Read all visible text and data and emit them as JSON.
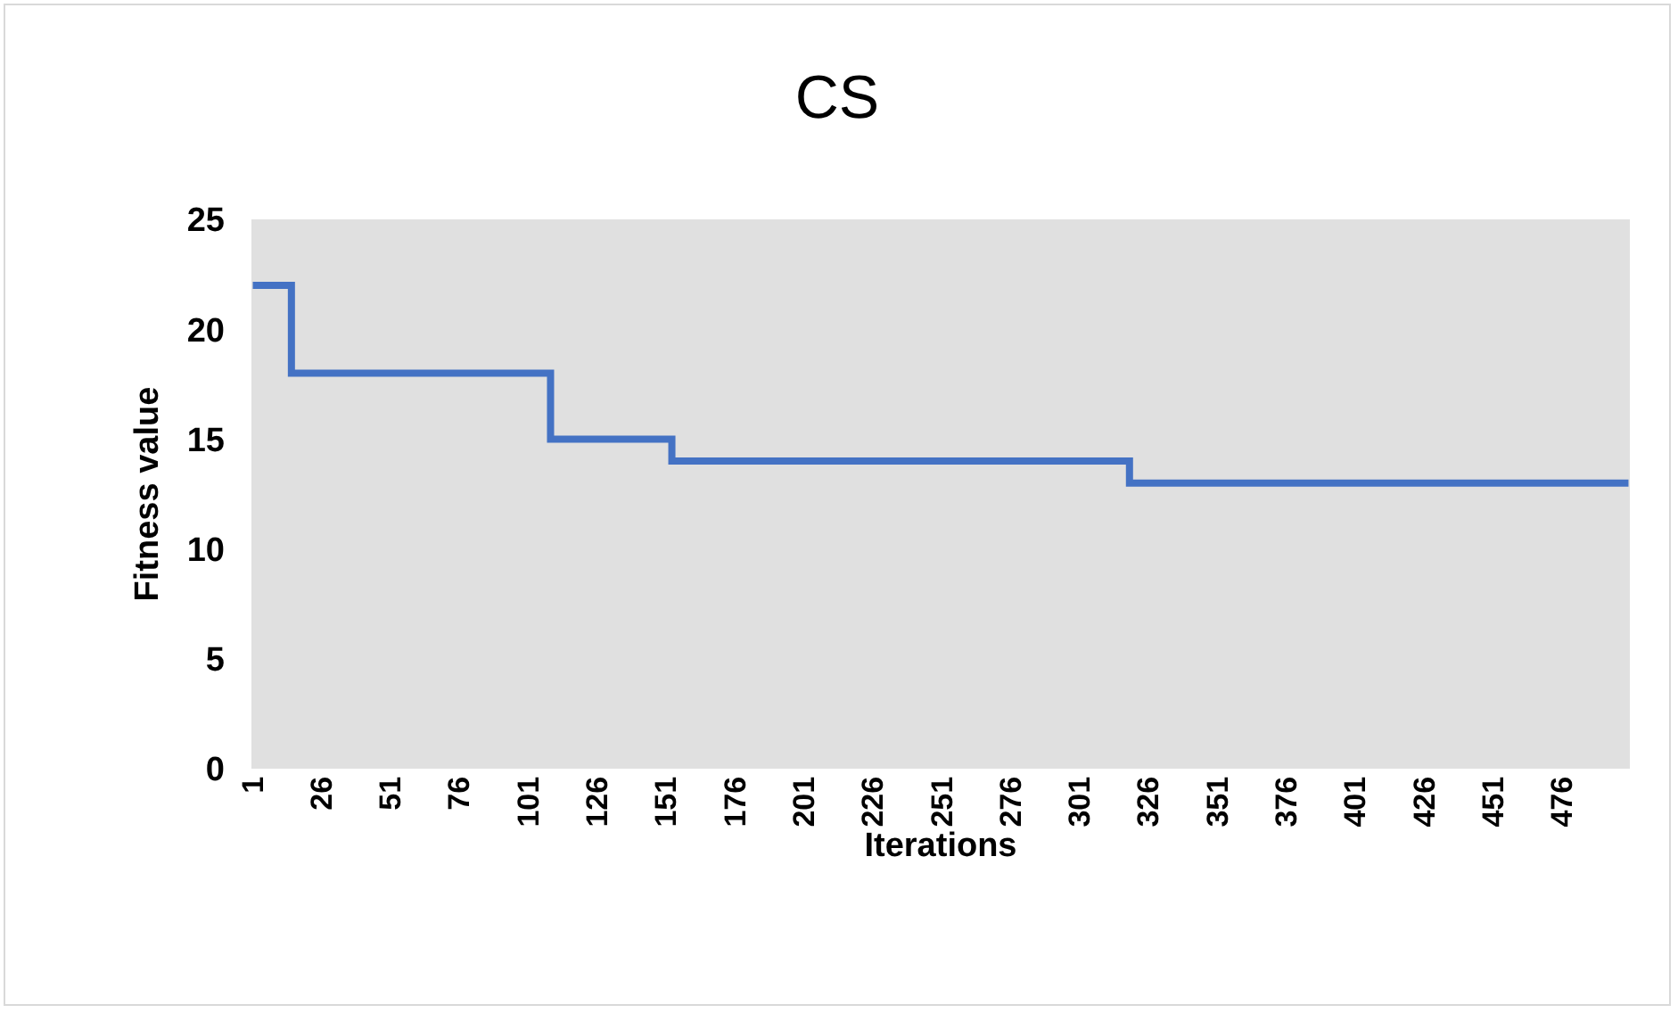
{
  "chart_data": {
    "type": "step",
    "title": "CS",
    "xlabel": "Iterations",
    "ylabel": "Fitness value",
    "x": [
      1,
      15,
      109,
      153,
      319,
      500
    ],
    "series": [
      {
        "color": "#4472c4",
        "values": [
          22,
          18,
          15,
          14,
          13,
          13
        ]
      }
    ],
    "xlim": [
      0.5,
      500.5
    ],
    "xticks": [
      1,
      26,
      51,
      76,
      101,
      126,
      151,
      176,
      201,
      226,
      251,
      276,
      301,
      326,
      351,
      376,
      401,
      426,
      451,
      476
    ],
    "ylim": [
      0,
      25
    ],
    "yticks": [
      0,
      5,
      10,
      15,
      20,
      25
    ],
    "grid": false,
    "marker": "none",
    "line_style": "solid"
  }
}
